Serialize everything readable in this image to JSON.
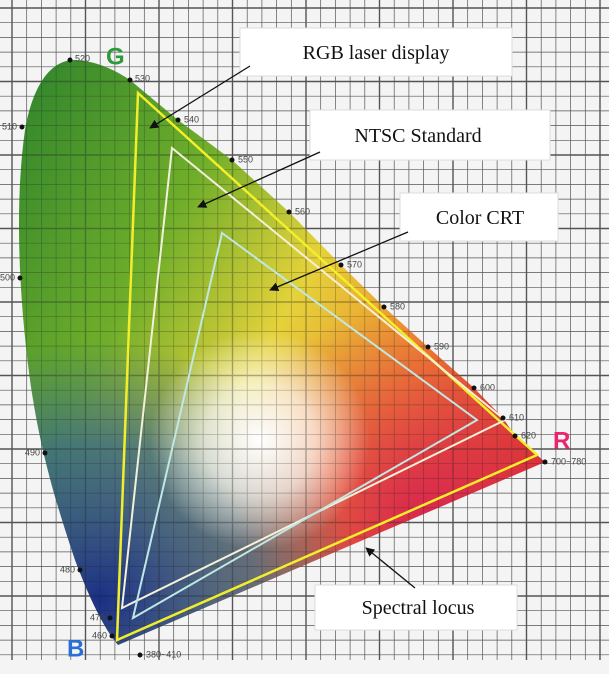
{
  "labels": {
    "rgb_laser": "RGB laser display",
    "ntsc": "NTSC Standard",
    "crt": "Color CRT",
    "spectral_locus": "Spectral locus"
  },
  "primaries": {
    "g": "G",
    "r": "R",
    "b": "B"
  },
  "wavelengths": [
    "520",
    "530",
    "540",
    "550",
    "560",
    "570",
    "580",
    "590",
    "600",
    "610",
    "620",
    "700~780",
    "510",
    "500",
    "490",
    "480",
    "470",
    "460",
    "380~410"
  ]
}
